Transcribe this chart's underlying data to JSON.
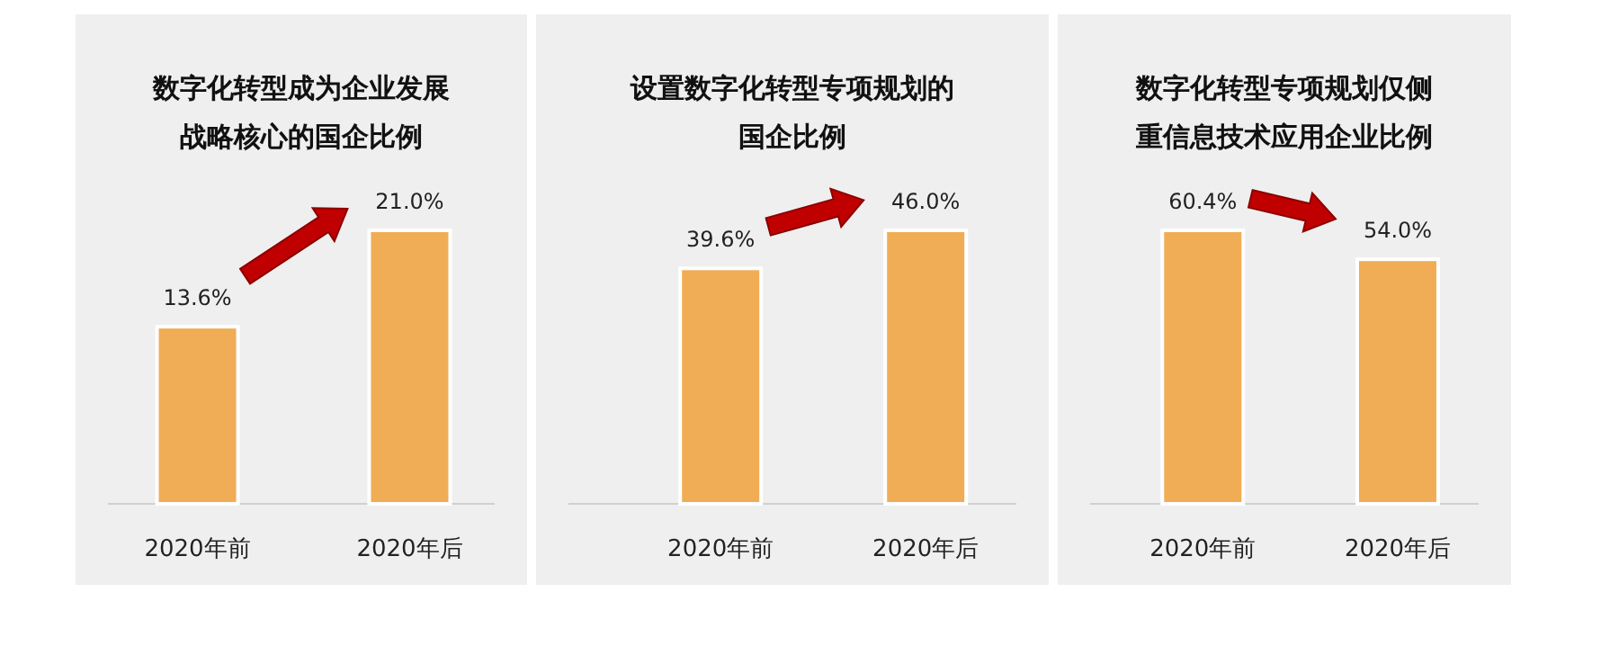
{
  "chart_data": [
    {
      "type": "bar",
      "title": "数字化转型成为企业发展战略核心的国企比例",
      "categories": [
        "2020年前",
        "2020年后"
      ],
      "values": [
        13.6,
        21.0
      ],
      "value_labels": [
        "13.6%",
        "21.0%"
      ],
      "color": "#f0ad55"
    },
    {
      "type": "bar",
      "title": "设置数字化转型专项规划的国企比例",
      "categories": [
        "2020年前",
        "2020年后"
      ],
      "values": [
        39.6,
        46.0
      ],
      "value_labels": [
        "39.6%",
        "46.0%"
      ],
      "color": "#f0ad55"
    },
    {
      "type": "bar",
      "title": "数字化转型专项规划仅侧重信息技术应用企业比例",
      "categories": [
        "2020年前",
        "2020年后"
      ],
      "values": [
        60.4,
        54.0
      ],
      "value_labels": [
        "60.4%",
        "54.0%"
      ],
      "color": "#f0ad55"
    }
  ]
}
